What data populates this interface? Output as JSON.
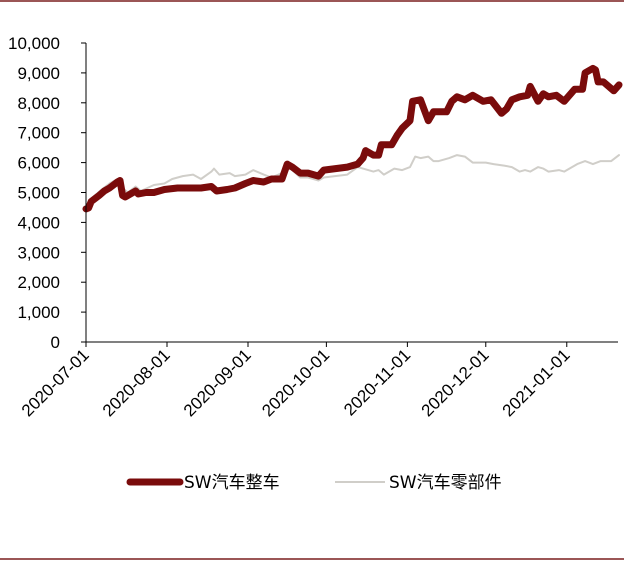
{
  "colors": {
    "frame_rule": "#7a1f1f",
    "axis": "#000000",
    "series_primary": "#7a0b0b",
    "series_secondary": "#d0cec9"
  },
  "chart_data": {
    "type": "line",
    "title": "",
    "xlabel": "",
    "ylabel": "",
    "ylim": [
      0,
      10000
    ],
    "xlim": [
      "2020-07-01",
      "2021-01-21"
    ],
    "y_ticks": [
      "0",
      "1,000",
      "2,000",
      "3,000",
      "4,000",
      "5,000",
      "6,000",
      "7,000",
      "8,000",
      "9,000",
      "10,000"
    ],
    "x_ticks": [
      "2020-07-01",
      "2020-08-01",
      "2020-09-01",
      "2020-10-01",
      "2020-11-01",
      "2020-12-01",
      "2021-01-01"
    ],
    "grid": false,
    "legend": "bottom",
    "series": [
      {
        "name": "SW汽车整车",
        "points": [
          [
            "2020-07-01",
            4450
          ],
          [
            "2020-07-02",
            4480
          ],
          [
            "2020-07-03",
            4700
          ],
          [
            "2020-07-06",
            4900
          ],
          [
            "2020-07-08",
            5050
          ],
          [
            "2020-07-10",
            5150
          ],
          [
            "2020-07-13",
            5350
          ],
          [
            "2020-07-14",
            5400
          ],
          [
            "2020-07-15",
            4900
          ],
          [
            "2020-07-16",
            4850
          ],
          [
            "2020-07-20",
            5050
          ],
          [
            "2020-07-21",
            4950
          ],
          [
            "2020-07-24",
            5000
          ],
          [
            "2020-07-27",
            5000
          ],
          [
            "2020-07-31",
            5100
          ],
          [
            "2020-08-05",
            5150
          ],
          [
            "2020-08-10",
            5150
          ],
          [
            "2020-08-14",
            5150
          ],
          [
            "2020-08-18",
            5200
          ],
          [
            "2020-08-20",
            5050
          ],
          [
            "2020-08-24",
            5100
          ],
          [
            "2020-08-27",
            5150
          ],
          [
            "2020-08-31",
            5300
          ],
          [
            "2020-09-03",
            5400
          ],
          [
            "2020-09-07",
            5350
          ],
          [
            "2020-09-10",
            5450
          ],
          [
            "2020-09-14",
            5450
          ],
          [
            "2020-09-16",
            5950
          ],
          [
            "2020-09-18",
            5850
          ],
          [
            "2020-09-21",
            5650
          ],
          [
            "2020-09-24",
            5650
          ],
          [
            "2020-09-28",
            5550
          ],
          [
            "2020-09-30",
            5750
          ],
          [
            "2020-10-09",
            5850
          ],
          [
            "2020-10-13",
            5950
          ],
          [
            "2020-10-15",
            6150
          ],
          [
            "2020-10-16",
            6400
          ],
          [
            "2020-10-19",
            6250
          ],
          [
            "2020-10-21",
            6250
          ],
          [
            "2020-10-22",
            6600
          ],
          [
            "2020-10-26",
            6600
          ],
          [
            "2020-10-28",
            6900
          ],
          [
            "2020-10-30",
            7150
          ],
          [
            "2020-11-02",
            7400
          ],
          [
            "2020-11-03",
            8050
          ],
          [
            "2020-11-06",
            8100
          ],
          [
            "2020-11-09",
            7400
          ],
          [
            "2020-11-11",
            7700
          ],
          [
            "2020-11-16",
            7700
          ],
          [
            "2020-11-18",
            8050
          ],
          [
            "2020-11-20",
            8200
          ],
          [
            "2020-11-23",
            8100
          ],
          [
            "2020-11-26",
            8250
          ],
          [
            "2020-11-30",
            8050
          ],
          [
            "2020-12-03",
            8100
          ],
          [
            "2020-12-07",
            7650
          ],
          [
            "2020-12-09",
            7800
          ],
          [
            "2020-12-11",
            8100
          ],
          [
            "2020-12-14",
            8200
          ],
          [
            "2020-12-17",
            8250
          ],
          [
            "2020-12-18",
            8550
          ],
          [
            "2020-12-21",
            8050
          ],
          [
            "2020-12-23",
            8300
          ],
          [
            "2020-12-25",
            8200
          ],
          [
            "2020-12-28",
            8250
          ],
          [
            "2020-12-31",
            8050
          ],
          [
            "2021-01-04",
            8450
          ],
          [
            "2021-01-07",
            8450
          ],
          [
            "2021-01-08",
            9000
          ],
          [
            "2021-01-11",
            9150
          ],
          [
            "2021-01-12",
            9100
          ],
          [
            "2021-01-13",
            8700
          ],
          [
            "2021-01-15",
            8700
          ],
          [
            "2021-01-19",
            8400
          ],
          [
            "2021-01-21",
            8600
          ]
        ]
      },
      {
        "name": "SW汽车零部件",
        "points": [
          [
            "2020-07-01",
            4500
          ],
          [
            "2020-07-03",
            4800
          ],
          [
            "2020-07-07",
            5100
          ],
          [
            "2020-07-10",
            5300
          ],
          [
            "2020-07-13",
            5450
          ],
          [
            "2020-07-15",
            5150
          ],
          [
            "2020-07-17",
            5000
          ],
          [
            "2020-07-20",
            5200
          ],
          [
            "2020-07-22",
            5050
          ],
          [
            "2020-07-27",
            5250
          ],
          [
            "2020-07-31",
            5300
          ],
          [
            "2020-08-03",
            5450
          ],
          [
            "2020-08-07",
            5550
          ],
          [
            "2020-08-11",
            5600
          ],
          [
            "2020-08-14",
            5450
          ],
          [
            "2020-08-18",
            5700
          ],
          [
            "2020-08-19",
            5800
          ],
          [
            "2020-08-21",
            5600
          ],
          [
            "2020-08-25",
            5650
          ],
          [
            "2020-08-27",
            5550
          ],
          [
            "2020-08-31",
            5600
          ],
          [
            "2020-09-03",
            5750
          ],
          [
            "2020-09-07",
            5600
          ],
          [
            "2020-09-10",
            5500
          ],
          [
            "2020-09-14",
            5650
          ],
          [
            "2020-09-16",
            5850
          ],
          [
            "2020-09-18",
            5750
          ],
          [
            "2020-09-21",
            5500
          ],
          [
            "2020-09-24",
            5500
          ],
          [
            "2020-09-28",
            5400
          ],
          [
            "2020-09-30",
            5500
          ],
          [
            "2020-10-09",
            5600
          ],
          [
            "2020-10-13",
            5850
          ],
          [
            "2020-10-15",
            5800
          ],
          [
            "2020-10-19",
            5700
          ],
          [
            "2020-10-21",
            5750
          ],
          [
            "2020-10-23",
            5600
          ],
          [
            "2020-10-27",
            5800
          ],
          [
            "2020-10-30",
            5750
          ],
          [
            "2020-11-02",
            5850
          ],
          [
            "2020-11-04",
            6200
          ],
          [
            "2020-11-06",
            6150
          ],
          [
            "2020-11-09",
            6200
          ],
          [
            "2020-11-11",
            6050
          ],
          [
            "2020-11-13",
            6050
          ],
          [
            "2020-11-17",
            6150
          ],
          [
            "2020-11-20",
            6250
          ],
          [
            "2020-11-23",
            6200
          ],
          [
            "2020-11-26",
            6000
          ],
          [
            "2020-12-01",
            6000
          ],
          [
            "2020-12-04",
            5950
          ],
          [
            "2020-12-08",
            5900
          ],
          [
            "2020-12-11",
            5850
          ],
          [
            "2020-12-14",
            5700
          ],
          [
            "2020-12-16",
            5750
          ],
          [
            "2020-12-18",
            5700
          ],
          [
            "2020-12-21",
            5850
          ],
          [
            "2020-12-23",
            5800
          ],
          [
            "2020-12-25",
            5700
          ],
          [
            "2020-12-29",
            5750
          ],
          [
            "2020-12-31",
            5700
          ],
          [
            "2021-01-05",
            5950
          ],
          [
            "2021-01-08",
            6050
          ],
          [
            "2021-01-11",
            5950
          ],
          [
            "2021-01-14",
            6050
          ],
          [
            "2021-01-18",
            6050
          ],
          [
            "2021-01-21",
            6250
          ]
        ]
      }
    ]
  }
}
